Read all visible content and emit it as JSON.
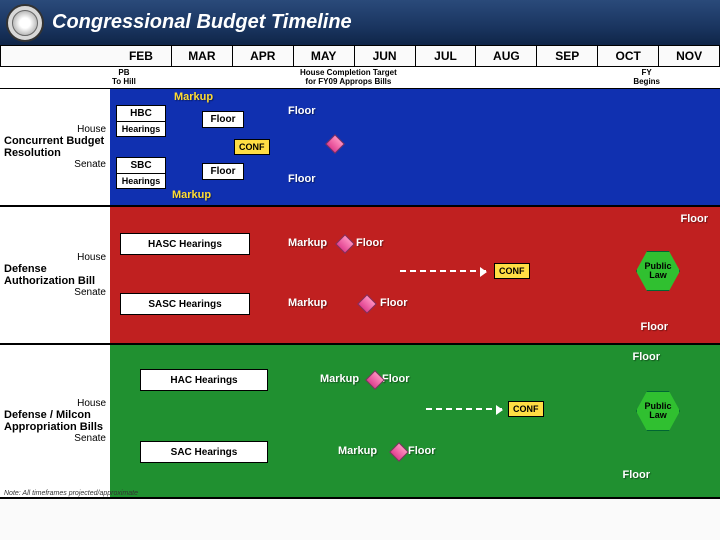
{
  "header": {
    "title": "Congressional Budget Timeline"
  },
  "months": [
    "FEB",
    "MAR",
    "APR",
    "MAY",
    "JUN",
    "JUL",
    "AUG",
    "SEP",
    "OCT",
    "NOV"
  ],
  "subheader": {
    "pb": "PB\nTo Hill",
    "house_target": "House Completion Target\nfor FY09 Approps Bills",
    "fy": "FY\nBegins"
  },
  "sections": {
    "cbr": {
      "title": "Concurrent Budget Resolution",
      "house": "House",
      "senate": "Senate",
      "hbc": "HBC",
      "sbc": "SBC",
      "hearings": "Hearings",
      "markup": "Markup",
      "floor": "Floor",
      "conf": "CONF"
    },
    "dab": {
      "title": "Defense Authorization Bill",
      "house": "House",
      "senate": "Senate",
      "hasc": "HASC Hearings",
      "sasc": "SASC Hearings",
      "markup": "Markup",
      "floor": "Floor",
      "conf": "CONF",
      "pl": "Public Law"
    },
    "dma": {
      "title": "Defense / Milcon Appropriation Bills",
      "house": "House",
      "senate": "Senate",
      "hac": "HAC Hearings",
      "sac": "SAC Hearings",
      "markup": "Markup",
      "floor": "Floor",
      "conf": "CONF",
      "pl": "Public Law"
    }
  },
  "footer": "Note: All timeframes projected/approximate",
  "colors": {
    "section1": "#1030b0",
    "section2": "#c02020",
    "section3": "#209030",
    "conf": "#ffdd44",
    "hex": "#30c030"
  }
}
